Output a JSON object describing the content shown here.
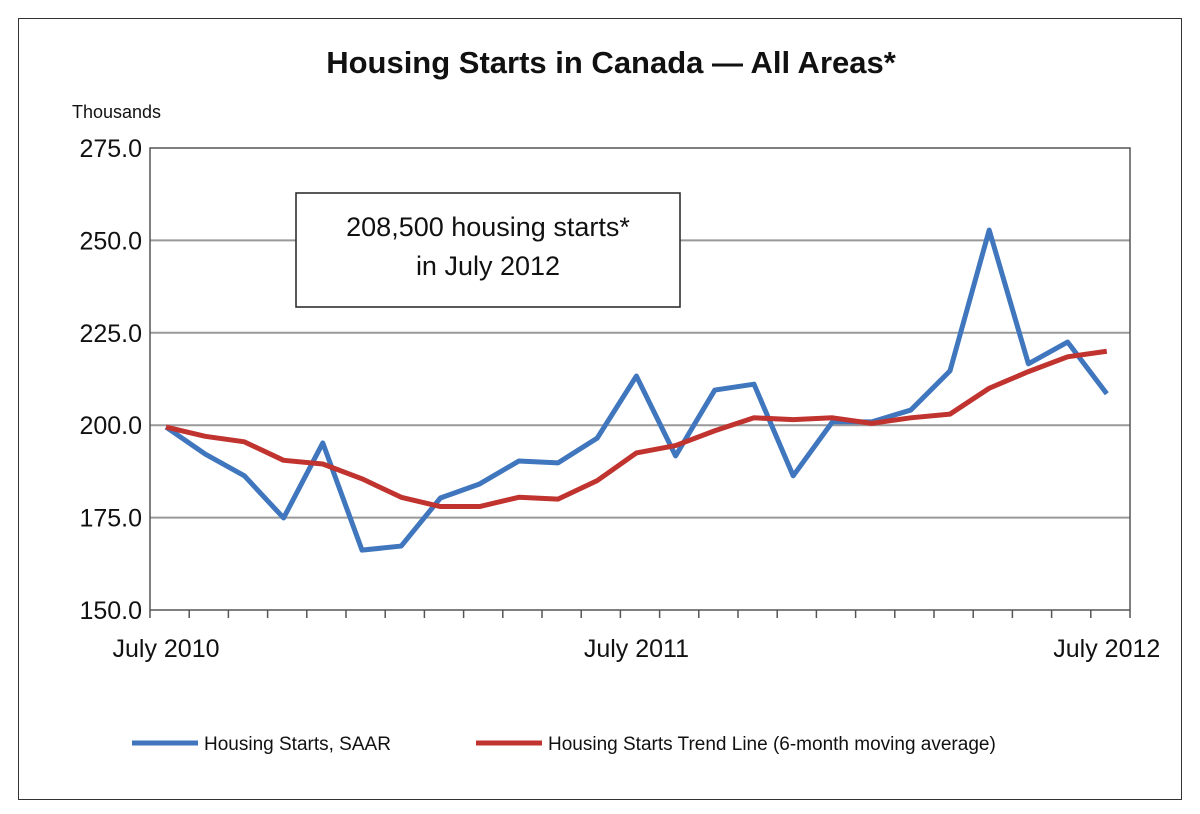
{
  "chart_data": {
    "type": "line",
    "title": "Housing Starts in Canada — All Areas*",
    "ylabel": "Thousands",
    "ylim": [
      150,
      275
    ],
    "yticks": [
      "150.0",
      "175.0",
      "200.0",
      "225.0",
      "250.0",
      "275.0"
    ],
    "xtick_labels": [
      "July 2010",
      "July 2011",
      "July 2012"
    ],
    "x": [
      "2010-07",
      "2010-08",
      "2010-09",
      "2010-10",
      "2010-11",
      "2010-12",
      "2011-01",
      "2011-02",
      "2011-03",
      "2011-04",
      "2011-05",
      "2011-06",
      "2011-07",
      "2011-08",
      "2011-09",
      "2011-10",
      "2011-11",
      "2011-12",
      "2012-01",
      "2012-02",
      "2012-03",
      "2012-04",
      "2012-05",
      "2012-06",
      "2012-07"
    ],
    "grid": true,
    "legend": "bottom",
    "annotation": [
      "208,500 housing starts*",
      "in July 2012"
    ],
    "series": [
      {
        "name": "Housing Starts, SAAR",
        "color": "#3f76bd",
        "values": [
          199.5,
          192.2,
          186.3,
          174.9,
          195.2,
          166.2,
          167.3,
          180.3,
          184.1,
          190.3,
          189.8,
          196.5,
          213.3,
          191.7,
          209.5,
          211.1,
          186.3,
          200.9,
          200.9,
          204.1,
          214.7,
          252.8,
          216.6,
          222.5,
          208.5
        ]
      },
      {
        "name": "Housing Starts Trend Line (6-month moving average)",
        "color": "#c0332f",
        "values": [
          199.5,
          197.0,
          195.5,
          190.5,
          189.5,
          185.5,
          180.5,
          178.0,
          178.0,
          180.5,
          180.0,
          185.0,
          192.5,
          194.5,
          198.5,
          202.0,
          201.5,
          202.0,
          200.5,
          202.0,
          203.0,
          210.0,
          214.5,
          218.5,
          220.0
        ]
      }
    ]
  }
}
